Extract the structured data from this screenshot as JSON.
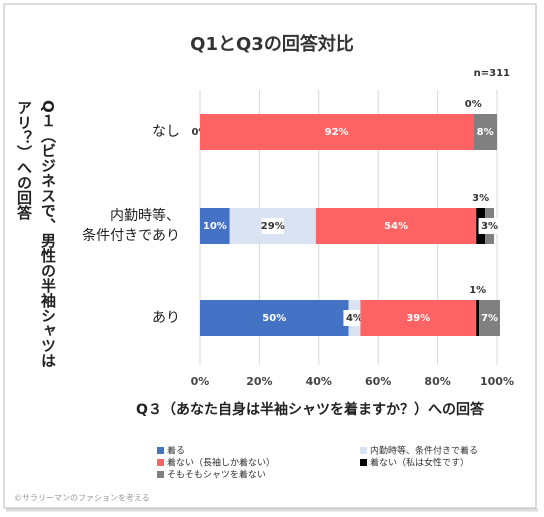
{
  "chart_data": {
    "type": "stacked_barh",
    "title": "Q1とQ3の回答対比",
    "annotation": "n=311",
    "x_label": "Q３（あなた自身は半袖シャツを着ますか？）への回答",
    "y_label": "Q１（ビジネスで、男性の半袖シャツはアリ？）への回答",
    "footer": "©サラリーマンのファションを考える",
    "categories": [
      "なし",
      "内勤時等、\n条件付きであり",
      "あり"
    ],
    "series": [
      {
        "name": "着る",
        "color": "#4472c4",
        "values": [
          0,
          10,
          50
        ],
        "value_labels": [
          "0%",
          "10%",
          "50%"
        ]
      },
      {
        "name": "内勤時等、条件付きで着る",
        "color": "#dae3f3",
        "values": [
          0,
          29,
          4
        ],
        "value_labels": [
          null,
          "29%",
          "4%"
        ]
      },
      {
        "name": "着ない（長袖しか着ない）",
        "color": "#ff6363",
        "values": [
          92,
          54,
          39
        ],
        "value_labels": [
          "92%",
          "54%",
          "39%"
        ]
      },
      {
        "name": "着ない（私は女性です）",
        "color": "#000000",
        "values": [
          0,
          3,
          1
        ],
        "value_labels": [
          "0%",
          "3%",
          "1%"
        ]
      },
      {
        "name": "そもそもシャツを着ない",
        "color": "#808080",
        "values": [
          8,
          3,
          7
        ],
        "value_labels": [
          "8%",
          "3%",
          "7%"
        ]
      }
    ],
    "xlim": [
      0,
      100
    ],
    "xticks": [
      {
        "value": 0,
        "label": "0%"
      },
      {
        "value": 20,
        "label": "20%"
      },
      {
        "value": 40,
        "label": "40%"
      },
      {
        "value": 60,
        "label": "60%"
      },
      {
        "value": 80,
        "label": "80%"
      },
      {
        "value": 100,
        "label": "100%"
      }
    ],
    "grid": true,
    "legend_position": "bottom"
  }
}
